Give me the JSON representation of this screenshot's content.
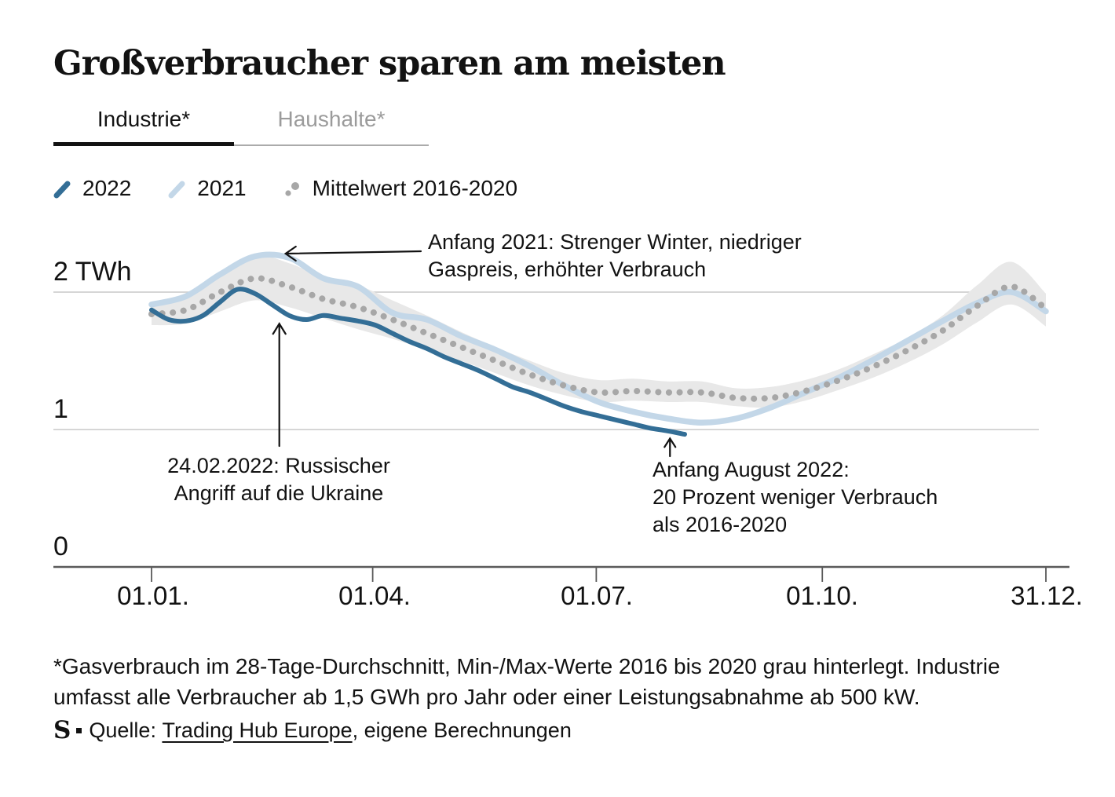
{
  "title": "Großverbraucher sparen am meisten",
  "tabs": [
    {
      "label": "Industrie*",
      "active": true
    },
    {
      "label": "Haushalte*",
      "active": false
    }
  ],
  "legend": [
    {
      "label": "2022",
      "swatch": "stroke",
      "color": "#336e96"
    },
    {
      "label": "2021",
      "swatch": "stroke",
      "color": "#c3d7e8"
    },
    {
      "label": "Mittelwert 2016-2020",
      "swatch": "dots",
      "color": "#a7a7a7"
    }
  ],
  "chart_data": {
    "type": "line",
    "title": "Großverbraucher sparen am meisten",
    "unit": "TWh",
    "x_axis": {
      "tick_labels": [
        "01.01.",
        "01.04.",
        "01.07.",
        "01.10.",
        "31.12."
      ],
      "tick_days": [
        0,
        90,
        181,
        273,
        364
      ],
      "domain_days": [
        0,
        364
      ]
    },
    "y_axis": {
      "tick_labels": [
        "2 TWh",
        "1",
        "0"
      ],
      "tick_values": [
        2,
        1,
        0
      ],
      "ylim": [
        0,
        2.5
      ],
      "gridlines": [
        2,
        1
      ]
    },
    "band": {
      "name": "Min-/Max-Werte 2016 bis 2020",
      "color": "#e8e8e8",
      "days": [
        0,
        14,
        28,
        42,
        56,
        70,
        84,
        98,
        112,
        126,
        140,
        154,
        168,
        182,
        196,
        210,
        224,
        238,
        252,
        266,
        280,
        294,
        308,
        322,
        336,
        350,
        364
      ],
      "max": [
        1.93,
        1.99,
        2.15,
        2.27,
        2.21,
        2.11,
        2.05,
        1.94,
        1.83,
        1.71,
        1.6,
        1.5,
        1.41,
        1.36,
        1.37,
        1.35,
        1.35,
        1.3,
        1.31,
        1.36,
        1.44,
        1.55,
        1.67,
        1.83,
        2.05,
        2.22,
        1.99
      ],
      "min": [
        1.76,
        1.77,
        1.86,
        1.94,
        1.89,
        1.81,
        1.73,
        1.66,
        1.58,
        1.5,
        1.41,
        1.32,
        1.25,
        1.2,
        1.21,
        1.2,
        1.2,
        1.17,
        1.16,
        1.21,
        1.29,
        1.38,
        1.49,
        1.62,
        1.78,
        1.91,
        1.75
      ]
    },
    "series": [
      {
        "name": "2021",
        "style": "solid",
        "color": "#c3d7e8",
        "width": 7.5,
        "days": [
          0,
          14,
          28,
          42,
          56,
          70,
          84,
          98,
          112,
          126,
          140,
          154,
          168,
          182,
          196,
          210,
          224,
          238,
          252,
          266,
          280,
          294,
          308,
          322,
          336,
          350,
          364
        ],
        "values": [
          1.91,
          1.97,
          2.13,
          2.26,
          2.25,
          2.1,
          2.04,
          1.85,
          1.8,
          1.68,
          1.58,
          1.46,
          1.32,
          1.2,
          1.13,
          1.08,
          1.05,
          1.08,
          1.16,
          1.27,
          1.38,
          1.51,
          1.65,
          1.79,
          1.92,
          2.0,
          1.86
        ]
      },
      {
        "name": "Mittelwert 2016-2020",
        "style": "dotted",
        "color": "#a7a7a7",
        "width": 8,
        "days": [
          0,
          14,
          28,
          42,
          56,
          70,
          84,
          98,
          112,
          126,
          140,
          154,
          168,
          182,
          196,
          210,
          224,
          238,
          252,
          266,
          280,
          294,
          308,
          322,
          336,
          350,
          364
        ],
        "values": [
          1.84,
          1.87,
          2.0,
          2.1,
          2.04,
          1.95,
          1.89,
          1.8,
          1.7,
          1.6,
          1.5,
          1.4,
          1.32,
          1.27,
          1.28,
          1.27,
          1.27,
          1.23,
          1.23,
          1.28,
          1.36,
          1.46,
          1.58,
          1.72,
          1.9,
          2.04,
          1.88
        ]
      },
      {
        "name": "2022",
        "style": "solid",
        "color": "#336e96",
        "width": 6,
        "days": [
          0,
          7,
          14,
          21,
          28,
          35,
          42,
          49,
          56,
          63,
          70,
          77,
          84,
          91,
          98,
          105,
          112,
          119,
          126,
          133,
          140,
          147,
          154,
          161,
          168,
          175,
          182,
          189,
          196,
          203,
          210,
          217
        ],
        "values": [
          1.87,
          1.8,
          1.79,
          1.83,
          1.93,
          2.02,
          1.99,
          1.91,
          1.83,
          1.8,
          1.83,
          1.81,
          1.79,
          1.76,
          1.7,
          1.64,
          1.59,
          1.53,
          1.48,
          1.43,
          1.37,
          1.31,
          1.27,
          1.22,
          1.17,
          1.13,
          1.1,
          1.07,
          1.04,
          1.01,
          0.99,
          0.965
        ]
      }
    ],
    "annotations": [
      {
        "text_lines": [
          "Anfang 2021: Strenger Winter, niedriger",
          "Gaspreis, erhöhter Verbrauch"
        ],
        "arrow": "left",
        "target_day": 52,
        "target_value": 2.28
      },
      {
        "text_lines": [
          "24.02.2022: Russischer",
          "Angriff auf die Ukraine"
        ],
        "arrow": "up",
        "target_day": 52,
        "target_value": 1.77
      },
      {
        "text_lines": [
          "Anfang August 2022:",
          "20 Prozent weniger Verbrauch",
          "als 2016-2020"
        ],
        "arrow": "up",
        "target_day": 211,
        "target_value": 0.935
      }
    ]
  },
  "footnote": {
    "line1": "*Gasverbrauch im 28-Tage-Durchschnitt, Min-/Max-Werte 2016 bis 2020 grau hinterlegt. Industrie",
    "line2": "umfasst alle Verbraucher ab 1,5 GWh pro Jahr oder einer Leistungsabnahme ab 500 kW."
  },
  "source": {
    "logo": "S",
    "prefix": "Quelle: ",
    "link": "Trading Hub Europe",
    "suffix": ", eigene Berechnungen"
  }
}
